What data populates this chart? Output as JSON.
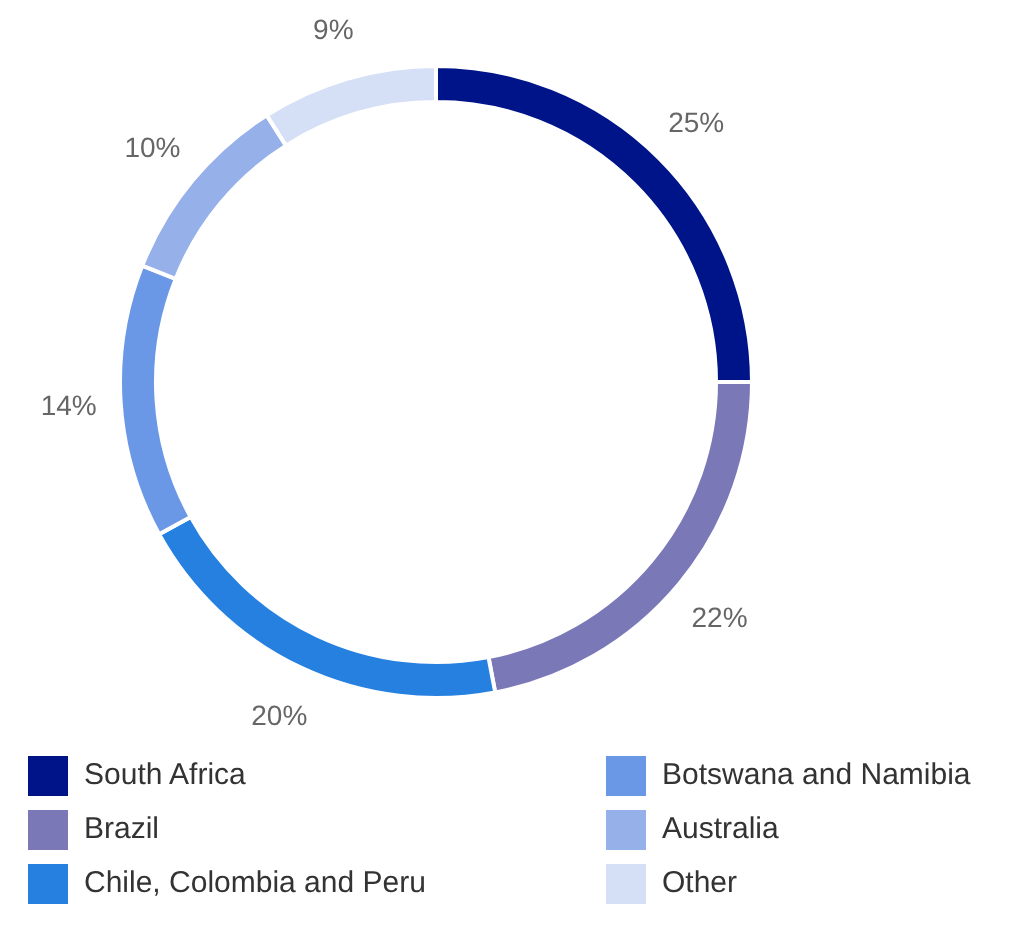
{
  "chart_data": {
    "type": "donut",
    "categories": [
      "South Africa",
      "Brazil",
      "Chile, Colombia and Peru",
      "Botswana and Namibia",
      "Australia",
      "Other"
    ],
    "values": [
      25,
      22,
      20,
      14,
      10,
      9
    ],
    "value_labels": [
      "25%",
      "22%",
      "20%",
      "14%",
      "10%",
      "9%"
    ],
    "colors": [
      "#001489",
      "#7b78b8",
      "#2580e0",
      "#6b98e6",
      "#96b0ea",
      "#d5dff5"
    ],
    "legend": "bottom"
  }
}
